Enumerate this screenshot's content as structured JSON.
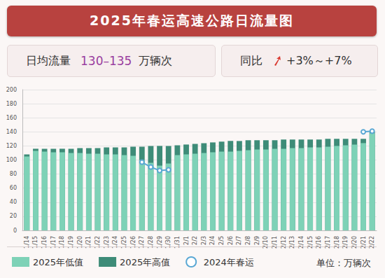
{
  "chart_data": {
    "type": "bar",
    "title": "2025年春运高速公路日流量图",
    "annotations": [
      {
        "label": "日均流量",
        "value": "130–135",
        "unit": "万辆次"
      },
      {
        "label": "同比",
        "value": "+3%～+7%"
      }
    ],
    "unit_label": "单位：万辆次",
    "categories": [
      "1/14",
      "1/15",
      "1/16",
      "1/17",
      "1/18",
      "1/19",
      "1/20",
      "1/21",
      "1/22",
      "1/23",
      "1/24",
      "1/25",
      "1/26",
      "1/27",
      "1/28",
      "1/29",
      "1/30",
      "1/31",
      "2/1",
      "2/2",
      "2/3",
      "2/4",
      "2/5",
      "2/6",
      "2/7",
      "2/8",
      "2/9",
      "2/10",
      "2/11",
      "2/12",
      "2/13",
      "2/14",
      "2/15",
      "2/16",
      "2/17",
      "2/18",
      "2/19",
      "2/20",
      "2/21",
      "2/22"
    ],
    "series": [
      {
        "name": "2025年低值",
        "type": "bar",
        "color": "#7ed2b7",
        "values": [
          105,
          113,
          112,
          111,
          111,
          110,
          110,
          109,
          109,
          108,
          108,
          107,
          106,
          100,
          96,
          92,
          95,
          107,
          108,
          109,
          110,
          111,
          112,
          112,
          113,
          114,
          115,
          115,
          116,
          116,
          117,
          117,
          118,
          118,
          119,
          120,
          121,
          122,
          124,
          138
        ]
      },
      {
        "name": "2025年高值",
        "type": "bar",
        "color": "#3e8c78",
        "values": [
          108,
          116,
          116,
          116,
          116,
          116,
          117,
          117,
          117,
          118,
          118,
          118,
          119,
          119,
          120,
          120,
          120,
          121,
          122,
          123,
          124,
          125,
          126,
          127,
          127,
          128,
          128,
          128,
          128,
          129,
          129,
          129,
          129,
          129,
          130,
          130,
          130,
          130,
          130,
          140
        ]
      },
      {
        "name": "2024年春运",
        "type": "line",
        "color": "#5aa8d4",
        "marker": "emptyCircle",
        "line_style": "solid",
        "values": [
          null,
          null,
          null,
          null,
          null,
          null,
          null,
          null,
          null,
          null,
          null,
          null,
          null,
          97,
          90,
          85,
          86,
          null,
          null,
          null,
          null,
          null,
          null,
          null,
          null,
          null,
          null,
          null,
          null,
          null,
          null,
          null,
          null,
          null,
          null,
          null,
          null,
          null,
          140,
          141
        ]
      }
    ],
    "ylim": [
      0,
      200
    ],
    "yticks": [
      0,
      20,
      40,
      60,
      80,
      100,
      120,
      140,
      160,
      180,
      200
    ],
    "grid": true,
    "legend": "bottom"
  }
}
